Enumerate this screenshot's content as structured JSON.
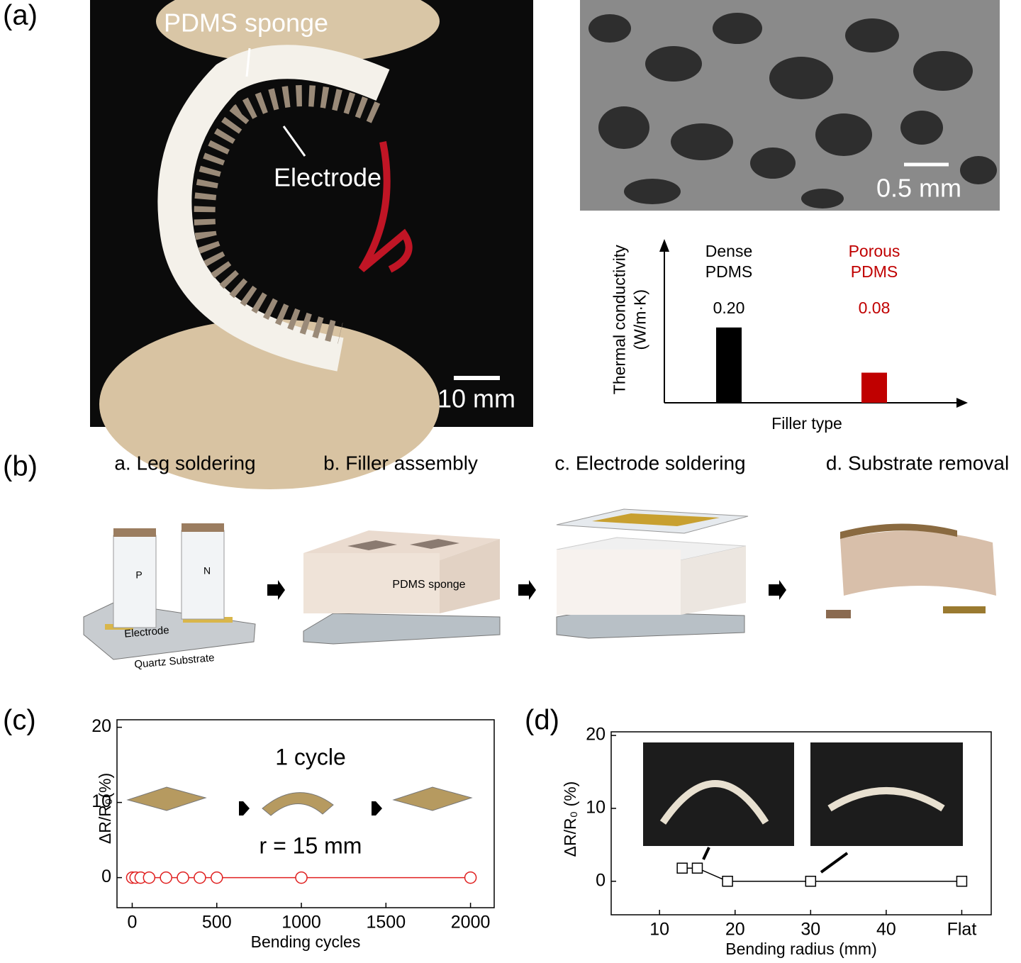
{
  "figure": {
    "panel_a": {
      "label": "(a)",
      "photo_labels": [
        "PDMS sponge",
        "Electrode"
      ],
      "scale_bar": "10 mm",
      "sem_scale_bar": "0.5 mm"
    },
    "panel_b": {
      "label": "(b)",
      "steps": [
        "a. Leg soldering",
        "b. Filler assembly",
        "c. Electrode soldering",
        "d. Substrate removal"
      ],
      "diagram_labels": [
        "P",
        "N",
        "Electrode",
        "Quartz Substrate",
        "PDMS sponge"
      ]
    },
    "panel_c": {
      "label": "(c)"
    },
    "panel_d": {
      "label": "(d)"
    }
  },
  "chart_data": [
    {
      "type": "bar",
      "categories": [
        "Dense PDMS",
        "Porous PDMS"
      ],
      "values": [
        0.2,
        0.08
      ],
      "value_labels": [
        "0.20",
        "0.08"
      ],
      "colors": [
        "#000000",
        "#c00000"
      ],
      "xlabel": "Filler type",
      "ylabel": "Thermal conductivity (W/m·K)",
      "ylim": [
        0,
        0.42
      ]
    },
    {
      "type": "line",
      "annotations": [
        "1 cycle",
        "r = 15 mm"
      ],
      "x": [
        0,
        20,
        50,
        100,
        200,
        300,
        400,
        500,
        1000,
        2000
      ],
      "series": [
        {
          "color": "#e02020",
          "values": [
            0,
            0,
            0,
            0,
            0,
            0,
            0,
            0,
            0,
            0
          ]
        }
      ],
      "marker": "circle",
      "xlabel": "Bending cycles",
      "ylabel": "ΔR/R₀(%)",
      "xlim": [
        -90,
        2140
      ],
      "ylim": [
        -4,
        21
      ],
      "xticks": [
        0,
        500,
        1000,
        1500,
        2000
      ],
      "yticks": [
        0,
        10,
        20
      ]
    },
    {
      "type": "line",
      "x": [
        13,
        15,
        19,
        30,
        50
      ],
      "series": [
        {
          "color": "#000000",
          "values": [
            1.8,
            1.8,
            0,
            0,
            0
          ]
        }
      ],
      "marker": "square",
      "xlabel": "Bending radius (mm)",
      "ylabel": "ΔR/R₀ (%)",
      "xlim": [
        3.6,
        53.9
      ],
      "ylim": [
        -4.6,
        20.5
      ],
      "xticks": [
        10,
        20,
        30,
        40,
        {
          "value": 50,
          "label": "Flat"
        }
      ],
      "yticks": [
        0,
        10,
        20
      ]
    }
  ]
}
